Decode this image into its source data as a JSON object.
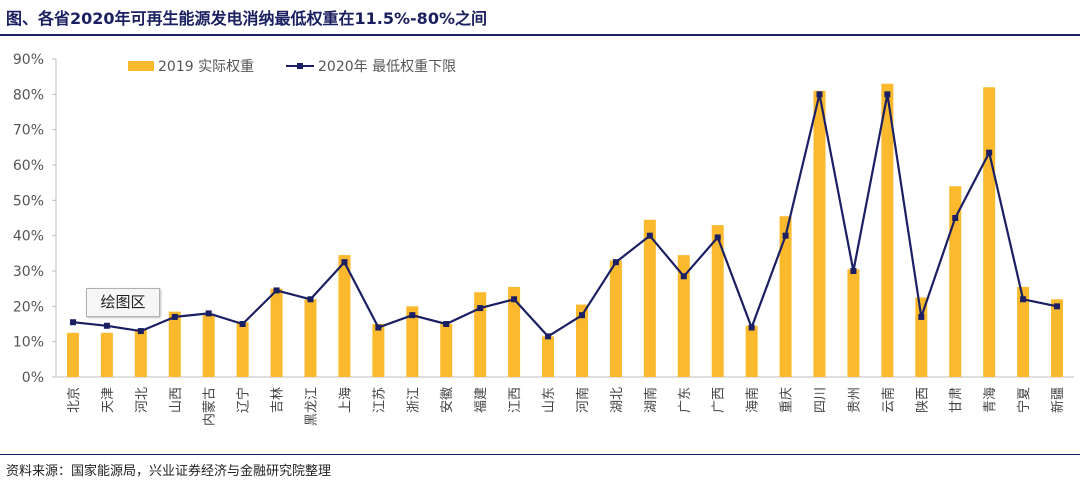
{
  "title": "图、各省2020年可再生能源发电消纳最低权重在11.5%-80%之间",
  "source": "资料来源：国家能源局，兴业证券经济与金融研究院整理",
  "tooltip": "绘图区",
  "colors": {
    "bar": "#FBBA2E",
    "line": "#1B1F63",
    "axis": "#BFBFBF",
    "header": "#1a2060"
  },
  "chart_data": {
    "type": "bar",
    "categories": [
      "北京",
      "天津",
      "河北",
      "山西",
      "内蒙古",
      "辽宁",
      "吉林",
      "黑龙江",
      "上海",
      "江苏",
      "浙江",
      "安徽",
      "福建",
      "江西",
      "山东",
      "河南",
      "湖北",
      "湖南",
      "广东",
      "广西",
      "海南",
      "重庆",
      "四川",
      "贵州",
      "云南",
      "陕西",
      "甘肃",
      "青海",
      "宁夏",
      "新疆"
    ],
    "series": [
      {
        "name": "2019 实际权重",
        "kind": "bar",
        "values": [
          12.5,
          12.5,
          13.5,
          18.5,
          17.5,
          15.5,
          25,
          22,
          34.5,
          15,
          20,
          15,
          24,
          25.5,
          11.5,
          20.5,
          33,
          44.5,
          34.5,
          43,
          14.5,
          45.5,
          81,
          30.5,
          83,
          22.5,
          54,
          82,
          25.5,
          22
        ]
      },
      {
        "name": "2020年 最低权重下限",
        "kind": "line",
        "values": [
          15.5,
          14.5,
          13,
          17,
          18,
          15,
          24.5,
          22,
          32.5,
          14,
          17.5,
          15,
          19.5,
          22,
          11.5,
          17.5,
          32.5,
          40,
          28.5,
          39.5,
          14,
          40,
          80,
          30,
          80,
          17,
          45,
          63.5,
          22,
          20
        ]
      }
    ],
    "xlabel": "",
    "ylabel": "",
    "ylim": [
      0,
      90
    ],
    "yticks": [
      "0%",
      "10%",
      "20%",
      "30%",
      "40%",
      "50%",
      "60%",
      "70%",
      "80%",
      "90%"
    ],
    "legend": "top-left",
    "grid": false
  }
}
